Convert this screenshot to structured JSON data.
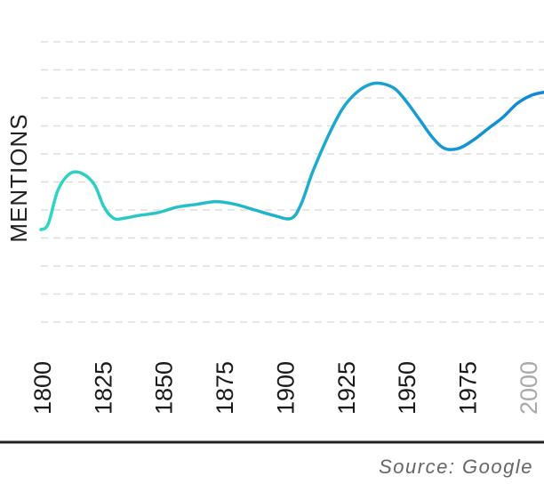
{
  "chart_data": {
    "type": "line",
    "title": "",
    "xlabel": "",
    "ylabel": "MENTIONS",
    "x_ticks": [
      "1800",
      "1825",
      "1850",
      "1875",
      "1900",
      "1925",
      "1950",
      "1975",
      "2000"
    ],
    "xlim": [
      1800,
      2007
    ],
    "ylim": [
      0,
      10
    ],
    "grid": true,
    "series": [
      {
        "x": [
          1800,
          1803,
          1807,
          1812,
          1817,
          1822,
          1826,
          1830,
          1834,
          1840,
          1848,
          1856,
          1864,
          1872,
          1880,
          1888,
          1896,
          1903,
          1907,
          1912,
          1918,
          1924,
          1930,
          1936,
          1941,
          1946,
          1951,
          1956,
          1961,
          1966,
          1972,
          1978,
          1984,
          1990,
          1996,
          2002,
          2007
        ],
        "y": [
          3.3,
          3.5,
          4.7,
          5.3,
          5.3,
          4.9,
          4.1,
          3.7,
          3.7,
          3.8,
          3.9,
          4.1,
          4.2,
          4.3,
          4.2,
          4.0,
          3.8,
          3.7,
          4.2,
          5.4,
          6.6,
          7.6,
          8.2,
          8.5,
          8.5,
          8.3,
          7.8,
          7.2,
          6.6,
          6.2,
          6.2,
          6.5,
          6.9,
          7.3,
          7.8,
          8.1,
          8.2
        ]
      }
    ],
    "colors": {
      "start": "#2ed8c3",
      "end": "#1087d6",
      "grid": "#dddddd",
      "axis": "#222222"
    },
    "muted_tick": "2000"
  },
  "source": "Source: Google"
}
